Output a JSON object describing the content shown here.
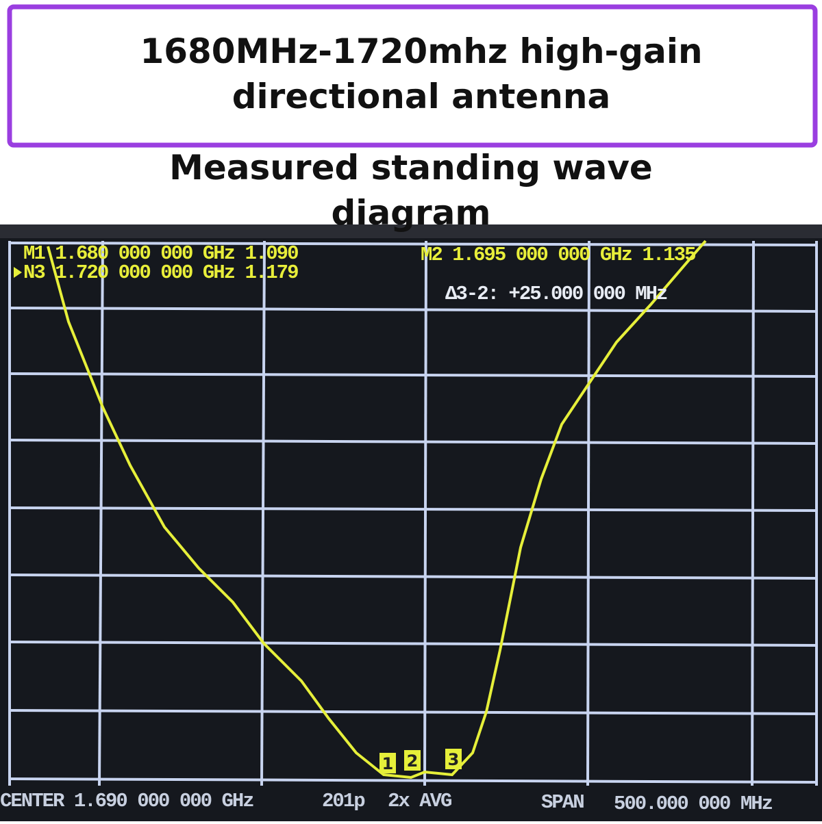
{
  "header": {
    "title_lines": [
      "1680MHz-1720mhz high-gain",
      "directional antenna"
    ]
  },
  "subtitle_lines": [
    "Measured standing wave",
    "diagram"
  ],
  "screen": {
    "markers": {
      "m1": "M1 1.680 000 000 GHz 1.090",
      "m3": "N3 1.720 000 000 GHz 1.179",
      "m2": "M2 1.695 000 000 GHz 1.135",
      "delta": "Δ3-2: +25.000 000 MHz"
    },
    "marker_tags": [
      "1",
      "2",
      "3"
    ],
    "footer": {
      "center": "CENTER 1.690 000 000 GHz",
      "points": "201p",
      "avg": "2x AVG",
      "span_label": "SPAN",
      "span_value": "500.000 000 MHz"
    }
  }
}
